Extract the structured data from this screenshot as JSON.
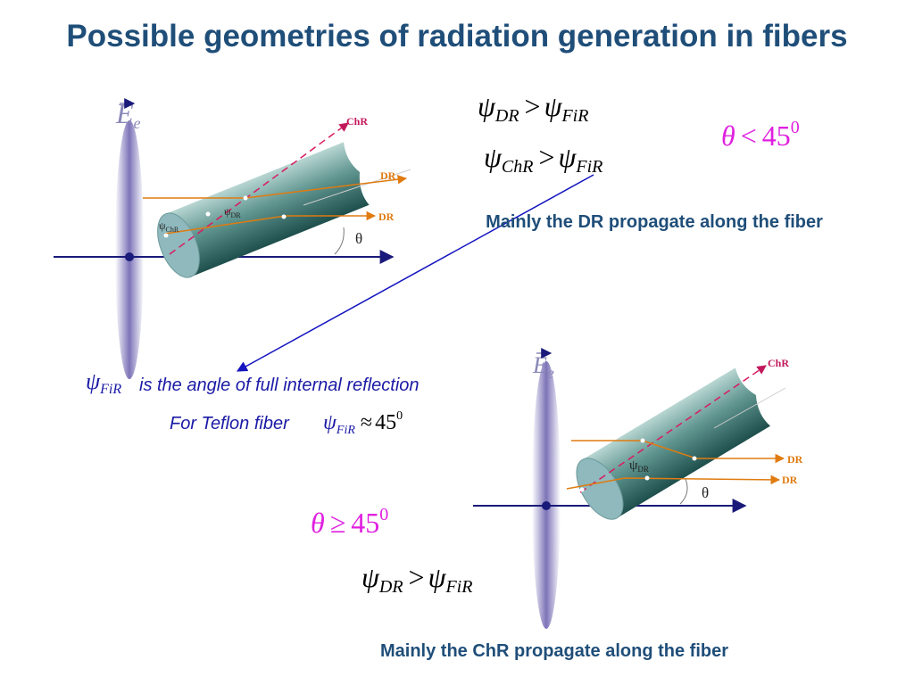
{
  "title": "Possible geometries of radiation generation in fibers",
  "top": {
    "relation1": [
      "ψ",
      "DR",
      ">",
      "ψ",
      "FiR"
    ],
    "relation2": [
      "ψ",
      "ChR",
      ">",
      "ψ",
      "FiR"
    ],
    "condition": [
      "θ",
      "<",
      "45",
      "0"
    ],
    "note": "Mainly the DR propagate along the fiber"
  },
  "definition": {
    "symbol": [
      "ψ",
      "FiR"
    ],
    "text": "is the angle of full internal reflection",
    "teflon": "For Teflon fiber",
    "teflon_formula": [
      "ψ",
      "FiR",
      "≈",
      "45",
      "0"
    ]
  },
  "bottom": {
    "condition": [
      "θ",
      "≥",
      "45",
      "0"
    ],
    "relation": [
      "ψ",
      "DR",
      ">",
      "ψ",
      "FiR"
    ],
    "note": "Mainly the ChR propagate along the fiber"
  },
  "diagram1": {
    "field": [
      "E",
      "e"
    ],
    "chr": "ChR",
    "dr1": "DR",
    "dr2": "DR",
    "psi_chr": [
      "ψ",
      "ChR"
    ],
    "psi_dr": [
      "ψ",
      "DR"
    ],
    "theta": "θ"
  },
  "diagram2": {
    "field": [
      "E",
      "e"
    ],
    "chr": "ChR",
    "dr1": "DR",
    "dr2": "DR",
    "psi_dr": [
      "ψ",
      "DR"
    ],
    "theta": "θ"
  }
}
